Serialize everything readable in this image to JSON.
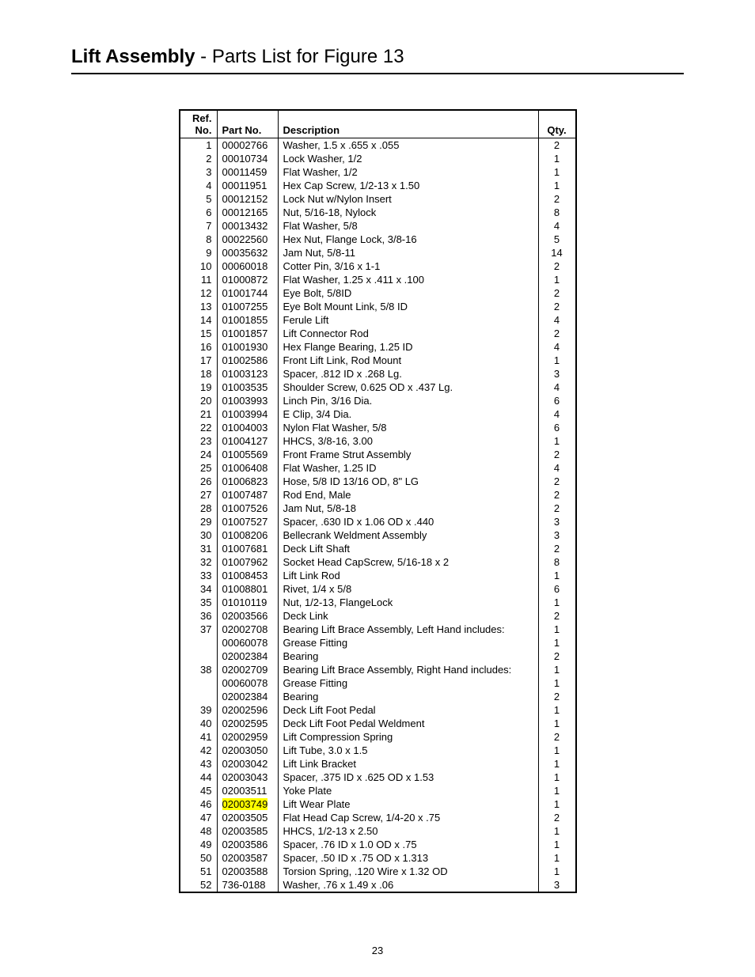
{
  "title_bold": "Lift Assembly",
  "title_regular": " - Parts List for Figure 13",
  "page_number": "23",
  "headers": {
    "ref_line1": "Ref.",
    "ref_line2": "No.",
    "partno": "Part No.",
    "description": "Description",
    "qty": "Qty."
  },
  "rows": [
    {
      "ref": "1",
      "part": "00002766",
      "desc": "Washer, 1.5 x .655 x .055",
      "qty": "2"
    },
    {
      "ref": "2",
      "part": "00010734",
      "desc": "Lock Washer, 1/2",
      "qty": "1"
    },
    {
      "ref": "3",
      "part": "00011459",
      "desc": "Flat Washer, 1/2",
      "qty": "1"
    },
    {
      "ref": "4",
      "part": "00011951",
      "desc": "Hex Cap Screw, 1/2-13 x 1.50",
      "qty": "1"
    },
    {
      "ref": "5",
      "part": "00012152",
      "desc": "Lock Nut w/Nylon Insert",
      "qty": "2"
    },
    {
      "ref": "6",
      "part": "00012165",
      "desc": "Nut, 5/16-18, Nylock",
      "qty": "8"
    },
    {
      "ref": "7",
      "part": "00013432",
      "desc": "Flat Washer, 5/8",
      "qty": "4"
    },
    {
      "ref": "8",
      "part": "00022560",
      "desc": "Hex Nut, Flange Lock, 3/8-16",
      "qty": "5"
    },
    {
      "ref": "9",
      "part": "00035632",
      "desc": "Jam Nut, 5/8-11",
      "qty": "14"
    },
    {
      "ref": "10",
      "part": "00060018",
      "desc": "Cotter Pin, 3/16 x 1-1",
      "qty": "2"
    },
    {
      "ref": "11",
      "part": "01000872",
      "desc": "Flat Washer, 1.25 x .411 x .100",
      "qty": "1"
    },
    {
      "ref": "12",
      "part": "01001744",
      "desc": "Eye Bolt, 5/8ID",
      "qty": "2"
    },
    {
      "ref": "13",
      "part": "01007255",
      "desc": "Eye Bolt Mount Link, 5/8 ID",
      "qty": "2"
    },
    {
      "ref": "14",
      "part": "01001855",
      "desc": "Ferule Lift",
      "qty": "4"
    },
    {
      "ref": "15",
      "part": "01001857",
      "desc": "Lift Connector Rod",
      "qty": "2"
    },
    {
      "ref": "16",
      "part": "01001930",
      "desc": "Hex Flange Bearing, 1.25 ID",
      "qty": "4"
    },
    {
      "ref": "17",
      "part": "01002586",
      "desc": "Front Lift Link, Rod Mount",
      "qty": "1"
    },
    {
      "ref": "18",
      "part": "01003123",
      "desc": "Spacer, .812 ID x .268 Lg.",
      "qty": "3"
    },
    {
      "ref": "19",
      "part": "01003535",
      "desc": "Shoulder Screw, 0.625 OD x .437 Lg.",
      "qty": "4"
    },
    {
      "ref": "20",
      "part": "01003993",
      "desc": "Linch Pin, 3/16 Dia.",
      "qty": "6"
    },
    {
      "ref": "21",
      "part": "01003994",
      "desc": "E Clip, 3/4 Dia.",
      "qty": "4"
    },
    {
      "ref": "22",
      "part": "01004003",
      "desc": "Nylon Flat Washer, 5/8",
      "qty": "6"
    },
    {
      "ref": "23",
      "part": "01004127",
      "desc": "HHCS, 3/8-16, 3.00",
      "qty": "1"
    },
    {
      "ref": "24",
      "part": "01005569",
      "desc": "Front Frame Strut Assembly",
      "qty": "2"
    },
    {
      "ref": "25",
      "part": "01006408",
      "desc": "Flat Washer, 1.25 ID",
      "qty": "4"
    },
    {
      "ref": "26",
      "part": "01006823",
      "desc": "Hose, 5/8 ID 13/16 OD, 8\" LG",
      "qty": "2"
    },
    {
      "ref": "27",
      "part": "01007487",
      "desc": "Rod End, Male",
      "qty": "2"
    },
    {
      "ref": "28",
      "part": "01007526",
      "desc": "Jam Nut, 5/8-18",
      "qty": "2"
    },
    {
      "ref": "29",
      "part": "01007527",
      "desc": "Spacer, .630 ID x 1.06 OD x .440",
      "qty": "3"
    },
    {
      "ref": "30",
      "part": "01008206",
      "desc": "Bellecrank Weldment Assembly",
      "qty": "3"
    },
    {
      "ref": "31",
      "part": "01007681",
      "desc": "Deck Lift Shaft",
      "qty": "2"
    },
    {
      "ref": "32",
      "part": "01007962",
      "desc": "Socket Head CapScrew, 5/16-18 x 2",
      "qty": "8"
    },
    {
      "ref": "33",
      "part": "01008453",
      "desc": "Lift Link Rod",
      "qty": "1"
    },
    {
      "ref": "34",
      "part": "01008801",
      "desc": "Rivet, 1/4 x 5/8",
      "qty": "6"
    },
    {
      "ref": "35",
      "part": "01010119",
      "desc": "Nut, 1/2-13, FlangeLock",
      "qty": "1"
    },
    {
      "ref": "36",
      "part": "02003566",
      "desc": "Deck Link",
      "qty": "2"
    },
    {
      "ref": "37",
      "part": "02002708",
      "desc": "Bearing Lift Brace Assembly, Left Hand includes:",
      "qty": "1"
    },
    {
      "ref": "",
      "part": "00060078",
      "desc": "Grease Fitting",
      "qty": "1"
    },
    {
      "ref": "",
      "part": "02002384",
      "desc": "Bearing",
      "qty": "2"
    },
    {
      "ref": "38",
      "part": "02002709",
      "desc": "Bearing Lift Brace Assembly, Right Hand includes:",
      "qty": "1"
    },
    {
      "ref": "",
      "part": "00060078",
      "desc": "Grease Fitting",
      "qty": "1"
    },
    {
      "ref": "",
      "part": "02002384",
      "desc": "Bearing",
      "qty": "2"
    },
    {
      "ref": "39",
      "part": "02002596",
      "desc": "Deck Lift Foot Pedal",
      "qty": "1"
    },
    {
      "ref": "40",
      "part": "02002595",
      "desc": "Deck Lift Foot Pedal Weldment",
      "qty": "1"
    },
    {
      "ref": "41",
      "part": "02002959",
      "desc": "Lift Compression Spring",
      "qty": "2"
    },
    {
      "ref": "42",
      "part": "02003050",
      "desc": "Lift Tube, 3.0 x 1.5",
      "qty": "1"
    },
    {
      "ref": "43",
      "part": "02003042",
      "desc": "Lift Link Bracket",
      "qty": "1"
    },
    {
      "ref": "44",
      "part": "02003043",
      "desc": "Spacer, .375 ID x .625 OD x 1.53",
      "qty": "1"
    },
    {
      "ref": "45",
      "part": "02003511",
      "desc": "Yoke Plate",
      "qty": "1"
    },
    {
      "ref": "46",
      "part": "02003749",
      "desc": "Lift Wear Plate",
      "qty": "1",
      "highlight_part": true
    },
    {
      "ref": "47",
      "part": "02003505",
      "desc": "Flat Head Cap Screw, 1/4-20 x .75",
      "qty": "2"
    },
    {
      "ref": "48",
      "part": "02003585",
      "desc": "HHCS, 1/2-13 x 2.50",
      "qty": "1"
    },
    {
      "ref": "49",
      "part": "02003586",
      "desc": "Spacer, .76 ID x 1.0 OD x .75",
      "qty": "1"
    },
    {
      "ref": "50",
      "part": "02003587",
      "desc": "Spacer, .50 ID x .75 OD x 1.313",
      "qty": "1"
    },
    {
      "ref": "51",
      "part": "02003588",
      "desc": "Torsion Spring, .120 Wire x 1.32 OD",
      "qty": "1"
    },
    {
      "ref": "52",
      "part": "736-0188",
      "desc": "Washer, .76 x 1.49 x .06",
      "qty": "3"
    }
  ]
}
